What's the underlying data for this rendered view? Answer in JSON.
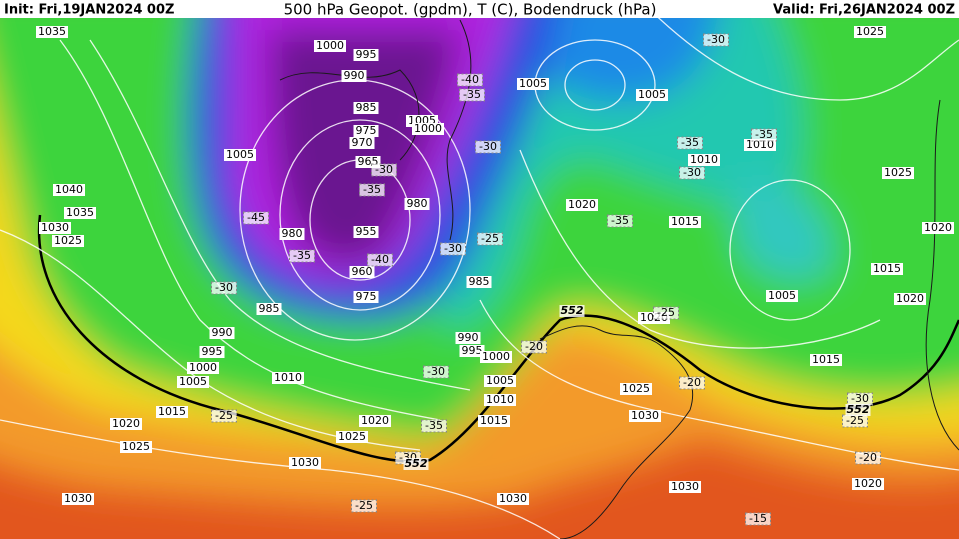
{
  "header": {
    "init": "Init: Fri,19JAN2024 00Z",
    "title": "500 hPa Geopot. (gpdm), T (C), Bodendruck (hPa)",
    "valid": "Valid: Fri,26JAN2024 00Z"
  },
  "pressure_labels": [
    "1035",
    "1000",
    "995",
    "990",
    "1005",
    "1005",
    "985",
    "1005",
    "1000",
    "975",
    "970",
    "1005",
    "965",
    "1010",
    "1010",
    "1025",
    "1025",
    "1040",
    "1035",
    "980",
    "1020",
    "1015",
    "1030",
    "1025",
    "980",
    "955",
    "1020",
    "960",
    "1015",
    "985",
    "975",
    "985",
    "1005",
    "1020",
    "1020",
    "990",
    "990",
    "995",
    "995",
    "1000",
    "1000",
    "1015",
    "1005",
    "1010",
    "1005",
    "1025",
    "1010",
    "1015",
    "1030",
    "1020",
    "1020",
    "1015",
    "1025",
    "1025",
    "1030",
    "1020",
    "1030",
    "1030",
    "1030"
  ],
  "temperature_labels": [
    "-30",
    "-40",
    "-35",
    "-30",
    "-35",
    "-35",
    "-30",
    "-35",
    "-30",
    "-45",
    "-35",
    "-25",
    "-30",
    "-35",
    "-40",
    "-30",
    "-25",
    "-20",
    "-30",
    "-20",
    "-25",
    "-35",
    "-30",
    "-30",
    "-25",
    "-20",
    "-25",
    "-15"
  ],
  "geopotential_labels": [
    "552",
    "552",
    "552"
  ]
}
